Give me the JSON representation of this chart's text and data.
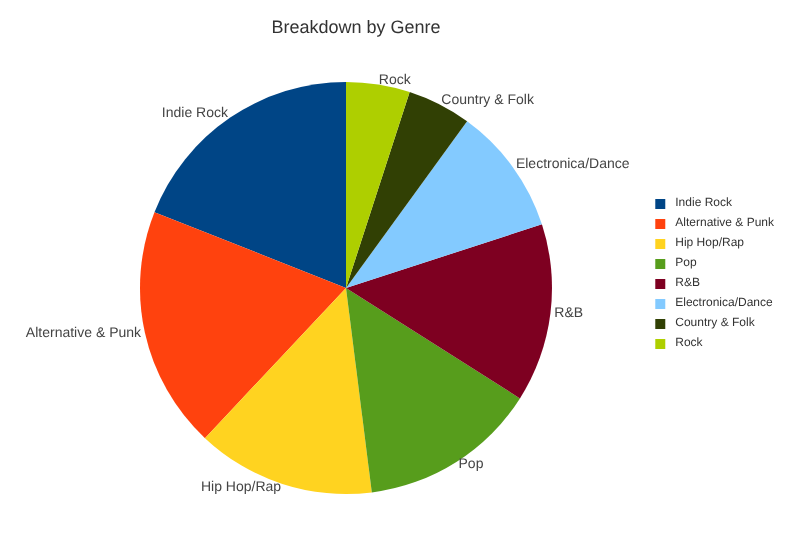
{
  "chart_data": {
    "type": "pie",
    "title": "Breakdown by Genre",
    "categories": [
      "Indie Rock",
      "Alternative & Punk",
      "Hip Hop/Rap",
      "Pop",
      "R&B",
      "Electronica/Dance",
      "Country & Folk",
      "Rock"
    ],
    "values": [
      19,
      19,
      14,
      14,
      14,
      10,
      5,
      5
    ],
    "colors": [
      "#004586",
      "#ff420e",
      "#ffd320",
      "#579d1c",
      "#7e0021",
      "#83caff",
      "#314004",
      "#aecf00"
    ],
    "legend": "right"
  }
}
